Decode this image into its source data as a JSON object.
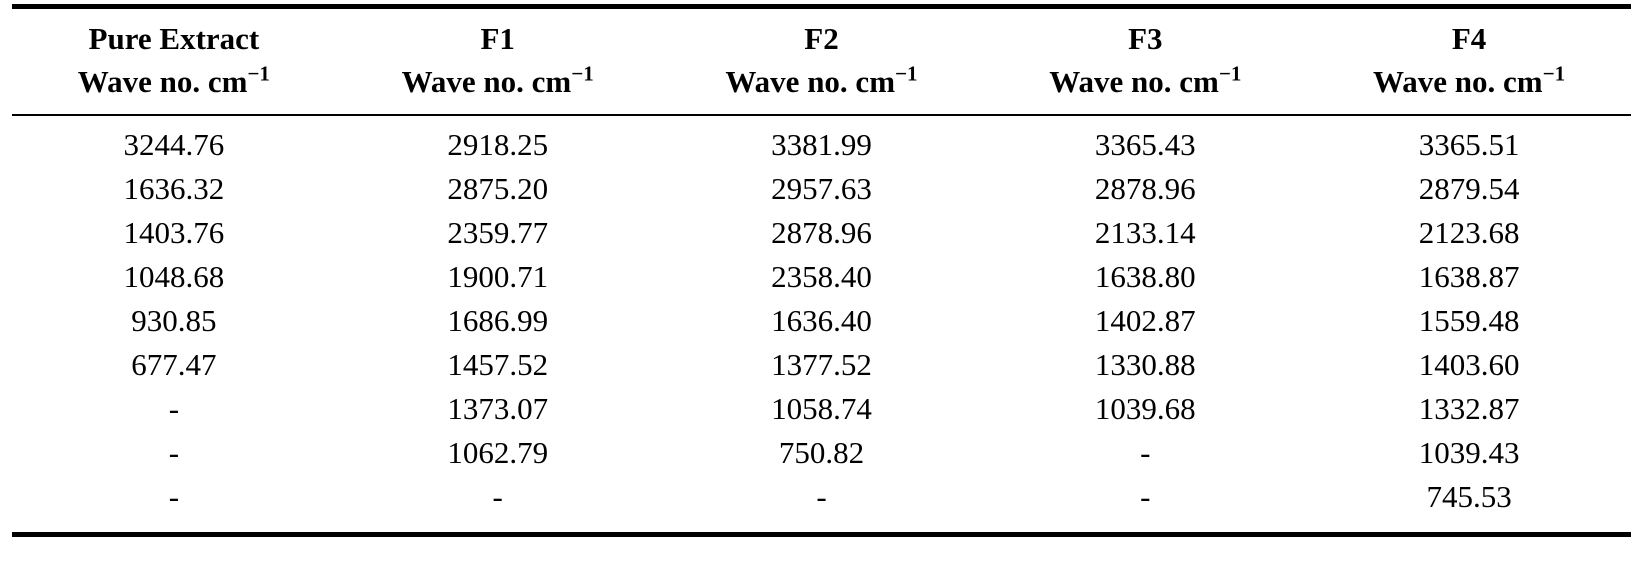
{
  "table": {
    "columns": [
      {
        "key": "pure-extract",
        "label": "Pure Extract",
        "unit_label": "Wave no. cm",
        "unit_superscript": "−1"
      },
      {
        "key": "f1",
        "label": "F1",
        "unit_label": "Wave no. cm",
        "unit_superscript": "−1"
      },
      {
        "key": "f2",
        "label": "F2",
        "unit_label": "Wave no. cm",
        "unit_superscript": "−1"
      },
      {
        "key": "f3",
        "label": "F3",
        "unit_label": "Wave no. cm",
        "unit_superscript": "−1"
      },
      {
        "key": "f4",
        "label": "F4",
        "unit_label": "Wave no. cm",
        "unit_superscript": "−1"
      }
    ],
    "rows": [
      [
        "3244.76",
        "2918.25",
        "3381.99",
        "3365.43",
        "3365.51"
      ],
      [
        "1636.32",
        "2875.20",
        "2957.63",
        "2878.96",
        "2879.54"
      ],
      [
        "1403.76",
        "2359.77",
        "2878.96",
        "2133.14",
        "2123.68"
      ],
      [
        "1048.68",
        "1900.71",
        "2358.40",
        "1638.80",
        "1638.87"
      ],
      [
        "930.85",
        "1686.99",
        "1636.40",
        "1402.87",
        "1559.48"
      ],
      [
        "677.47",
        "1457.52",
        "1377.52",
        "1330.88",
        "1403.60"
      ],
      [
        "-",
        "1373.07",
        "1058.74",
        "1039.68",
        "1332.87"
      ],
      [
        "-",
        "1062.79",
        "750.82",
        "-",
        "1039.43"
      ],
      [
        "-",
        "-",
        "-",
        "-",
        "745.53"
      ]
    ],
    "empty_cell_marker": "-",
    "colors": {
      "text": "#000000",
      "background": "#ffffff",
      "rule": "#000000"
    }
  }
}
